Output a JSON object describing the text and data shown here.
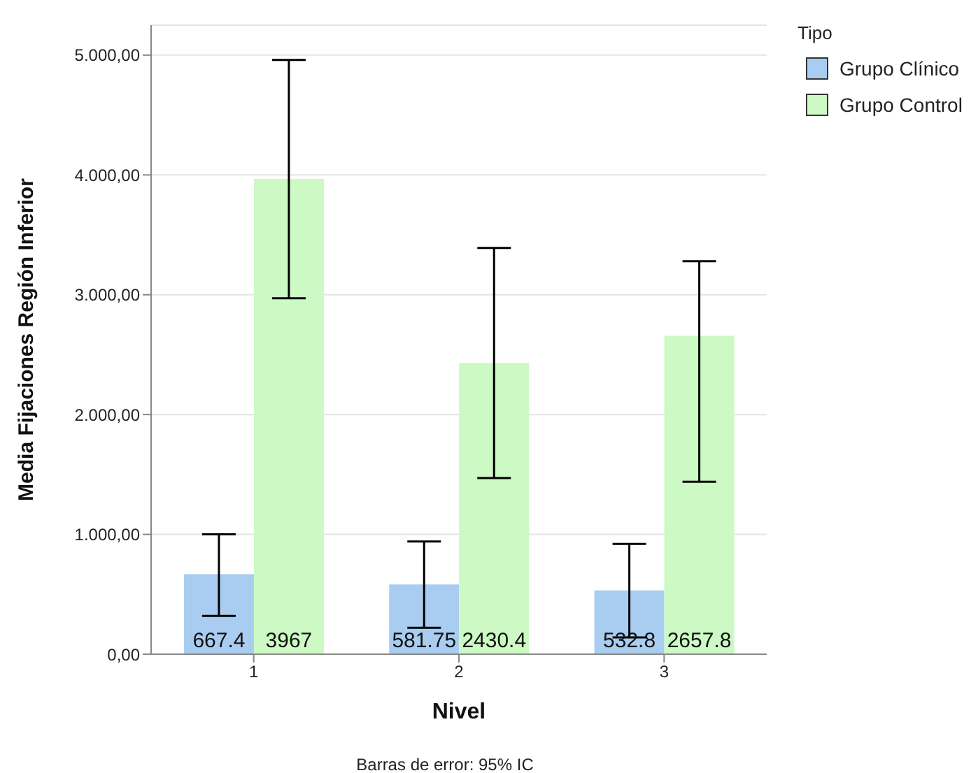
{
  "chart_data": {
    "type": "bar",
    "xlabel": "Nivel",
    "ylabel": "Media Fijaciones Región Inferior",
    "legend_title": "Tipo",
    "annotations": [
      "Barras de error: 95% IC"
    ],
    "categories": [
      "1",
      "2",
      "3"
    ],
    "series": [
      {
        "name": "Grupo Clínico",
        "color": "#a9cdf0",
        "values": [
          667.4,
          581.75,
          532.8
        ],
        "errors": [
          [
            320,
            1000
          ],
          [
            220,
            940
          ],
          [
            140,
            920
          ]
        ]
      },
      {
        "name": "Grupo Control",
        "color": "#ccf9c4",
        "values": [
          3967,
          2430.4,
          2657.8
        ],
        "errors": [
          [
            2970,
            4960
          ],
          [
            1470,
            3390
          ],
          [
            1440,
            3280
          ]
        ]
      }
    ],
    "ylim": [
      0,
      5250
    ],
    "yticks": [
      {
        "value": 0,
        "label": "0,00"
      },
      {
        "value": 1000,
        "label": "1.000,00"
      },
      {
        "value": 2000,
        "label": "2.000,00"
      },
      {
        "value": 3000,
        "label": "3.000,00"
      },
      {
        "value": 4000,
        "label": "4.000,00"
      },
      {
        "value": 5000,
        "label": "5.000,00"
      }
    ],
    "grid": "y",
    "legend": "top right",
    "data_labels": true
  }
}
